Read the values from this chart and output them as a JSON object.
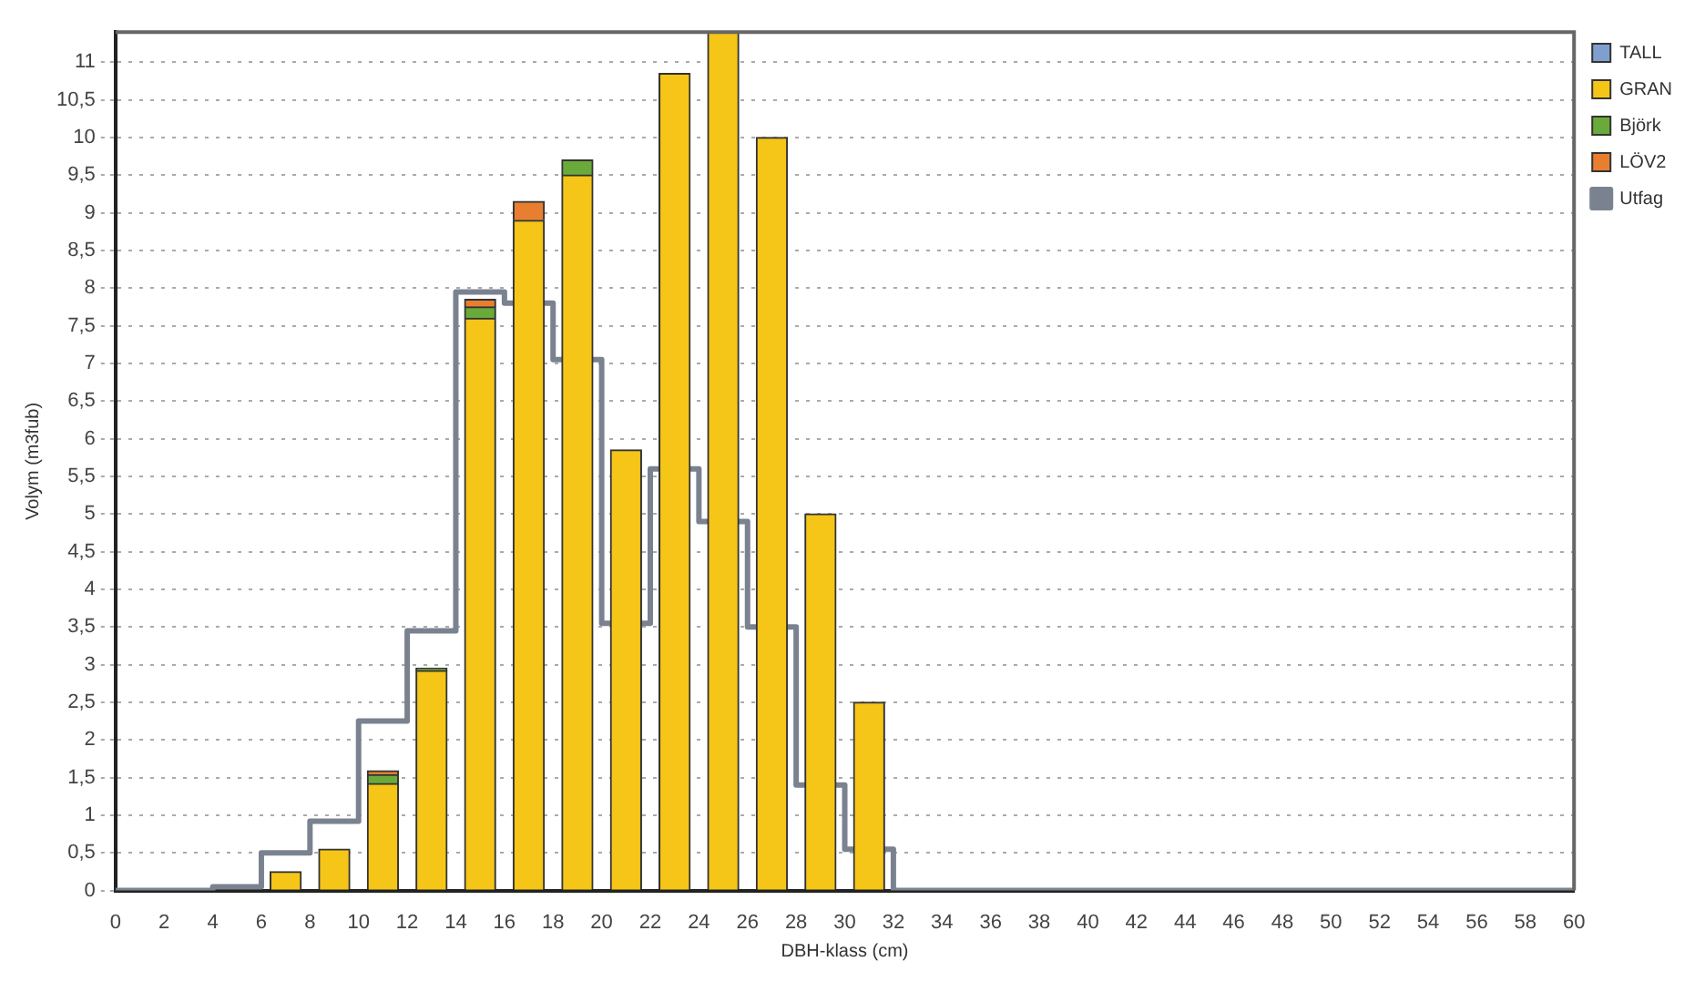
{
  "chart_data": {
    "type": "bar",
    "stacked": true,
    "xlabel": "DBH-klass (cm)",
    "ylabel": "Volym (m3fub)",
    "x": [
      7,
      9,
      11,
      13,
      15,
      17,
      19,
      21,
      23,
      25,
      27,
      29,
      31
    ],
    "series": [
      {
        "name": "TALL",
        "color": "#7f9fcf",
        "values": [
          0,
          0,
          0,
          0,
          0,
          0,
          0,
          0,
          0,
          0,
          0,
          0,
          0
        ]
      },
      {
        "name": "GRAN",
        "color": "#f5c518",
        "values": [
          0.25,
          0.55,
          1.42,
          2.92,
          7.6,
          8.9,
          9.5,
          5.85,
          10.85,
          11.4,
          10.0,
          5.0,
          2.5
        ]
      },
      {
        "name": "Björk",
        "color": "#6aaa3a",
        "values": [
          0,
          0,
          0.12,
          0.03,
          0.15,
          0,
          0.2,
          0,
          0,
          0,
          0,
          0,
          0
        ]
      },
      {
        "name": "LÖV2",
        "color": "#e87f30",
        "values": [
          0,
          0,
          0.05,
          0,
          0.1,
          0.25,
          0,
          0,
          0,
          0,
          0,
          0,
          0
        ]
      },
      {
        "name": "Utfag",
        "type": "step",
        "color": "#7a8290",
        "x": [
          0,
          4,
          6,
          8,
          10,
          12,
          14,
          16,
          18,
          20,
          22,
          24,
          26,
          28,
          30,
          32,
          60
        ],
        "values": [
          0,
          0.05,
          0.5,
          0.92,
          2.25,
          3.45,
          7.95,
          7.8,
          7.05,
          3.55,
          5.6,
          4.9,
          3.5,
          1.4,
          0.55,
          0,
          0
        ]
      }
    ],
    "xlim": [
      0,
      60
    ],
    "xticks": [
      0,
      2,
      4,
      6,
      8,
      10,
      12,
      14,
      16,
      18,
      20,
      22,
      24,
      26,
      28,
      30,
      32,
      34,
      36,
      38,
      40,
      42,
      44,
      46,
      48,
      50,
      52,
      54,
      56,
      58,
      60
    ],
    "ylim": [
      0,
      11.4
    ],
    "yticks": [
      0,
      {
        "value": 0.5,
        "label": "0,5"
      },
      1,
      {
        "value": 1.5,
        "label": "1,5"
      },
      2,
      {
        "value": 2.5,
        "label": "2,5"
      },
      3,
      {
        "value": 3.5,
        "label": "3,5"
      },
      4,
      {
        "value": 4.5,
        "label": "4,5"
      },
      5,
      {
        "value": 5.5,
        "label": "5,5"
      },
      6,
      {
        "value": 6.5,
        "label": "6,5"
      },
      7,
      {
        "value": 7.5,
        "label": "7,5"
      },
      8,
      {
        "value": 8.5,
        "label": "8,5"
      },
      9,
      {
        "value": 9.5,
        "label": "9,5"
      },
      10,
      {
        "value": 10.5,
        "label": "10,5"
      },
      11
    ],
    "grid": "y",
    "legend": "top right"
  }
}
